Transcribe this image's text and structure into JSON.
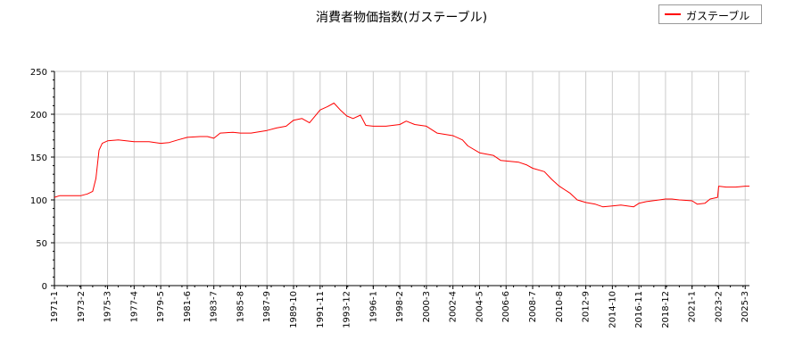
{
  "chart_data": {
    "type": "line",
    "title": "消費者物価指数(ガステーブル)",
    "xlabel": "",
    "ylabel": "",
    "ylim": [
      0,
      250
    ],
    "yticks": [
      0,
      50,
      100,
      150,
      200,
      250
    ],
    "grid": true,
    "legend_position": "top-right",
    "x_ticks": [
      "1971-1",
      "1973-2",
      "1975-3",
      "1977-4",
      "1979-5",
      "1981-6",
      "1983-7",
      "1985-8",
      "1987-9",
      "1989-10",
      "1991-11",
      "1993-12",
      "1996-1",
      "1998-2",
      "2000-3",
      "2002-4",
      "2004-5",
      "2006-6",
      "2008-7",
      "2010-8",
      "2012-9",
      "2014-10",
      "2016-11",
      "2018-12",
      "2021-1",
      "2023-2",
      "2025-3"
    ],
    "x_range": [
      "1971-01",
      "2025-07"
    ],
    "series": [
      {
        "name": "ガステーブル",
        "color": "#ff0000",
        "points": [
          [
            "1971-01",
            103
          ],
          [
            "1971-06",
            105
          ],
          [
            "1972-06",
            105
          ],
          [
            "1973-02",
            105
          ],
          [
            "1973-08",
            107
          ],
          [
            "1974-01",
            110
          ],
          [
            "1974-04",
            125
          ],
          [
            "1974-07",
            158
          ],
          [
            "1974-10",
            166
          ],
          [
            "1975-03",
            169
          ],
          [
            "1976-01",
            170
          ],
          [
            "1977-04",
            168
          ],
          [
            "1978-06",
            168
          ],
          [
            "1979-05",
            166
          ],
          [
            "1980-01",
            167
          ],
          [
            "1980-09",
            170
          ],
          [
            "1981-06",
            173
          ],
          [
            "1982-06",
            174
          ],
          [
            "1983-01",
            174
          ],
          [
            "1983-07",
            172
          ],
          [
            "1984-01",
            178
          ],
          [
            "1985-01",
            179
          ],
          [
            "1985-08",
            178
          ],
          [
            "1986-06",
            178
          ],
          [
            "1987-09",
            181
          ],
          [
            "1988-06",
            184
          ],
          [
            "1989-03",
            186
          ],
          [
            "1989-10",
            193
          ],
          [
            "1990-06",
            195
          ],
          [
            "1991-01",
            190
          ],
          [
            "1991-11",
            205
          ],
          [
            "1992-06",
            209
          ],
          [
            "1992-12",
            213
          ],
          [
            "1993-06",
            205
          ],
          [
            "1993-12",
            198
          ],
          [
            "1994-06",
            195
          ],
          [
            "1995-01",
            199
          ],
          [
            "1995-06",
            187
          ],
          [
            "1996-01",
            186
          ],
          [
            "1997-01",
            186
          ],
          [
            "1998-02",
            188
          ],
          [
            "1998-08",
            192
          ],
          [
            "1999-04",
            188
          ],
          [
            "2000-03",
            186
          ],
          [
            "2001-01",
            178
          ],
          [
            "2002-04",
            175
          ],
          [
            "2003-01",
            170
          ],
          [
            "2003-06",
            163
          ],
          [
            "2004-05",
            155
          ],
          [
            "2005-06",
            152
          ],
          [
            "2006-01",
            146
          ],
          [
            "2007-06",
            144
          ],
          [
            "2008-01",
            141
          ],
          [
            "2008-07",
            137
          ],
          [
            "2009-06",
            133
          ],
          [
            "2010-01",
            124
          ],
          [
            "2010-08",
            116
          ],
          [
            "2011-06",
            108
          ],
          [
            "2012-01",
            100
          ],
          [
            "2012-09",
            97
          ],
          [
            "2013-06",
            95
          ],
          [
            "2014-01",
            92
          ],
          [
            "2014-10",
            93
          ],
          [
            "2015-06",
            94
          ],
          [
            "2016-06",
            92
          ],
          [
            "2016-11",
            96
          ],
          [
            "2017-06",
            98
          ],
          [
            "2018-06",
            100
          ],
          [
            "2018-12",
            101
          ],
          [
            "2019-06",
            101
          ],
          [
            "2020-01",
            100
          ],
          [
            "2021-01",
            99
          ],
          [
            "2021-06",
            95
          ],
          [
            "2022-01",
            96
          ],
          [
            "2022-06",
            101
          ],
          [
            "2023-01",
            103
          ],
          [
            "2023-02",
            116
          ],
          [
            "2023-09",
            115
          ],
          [
            "2024-06",
            115
          ],
          [
            "2025-03",
            116
          ],
          [
            "2025-07",
            116
          ]
        ]
      }
    ]
  }
}
